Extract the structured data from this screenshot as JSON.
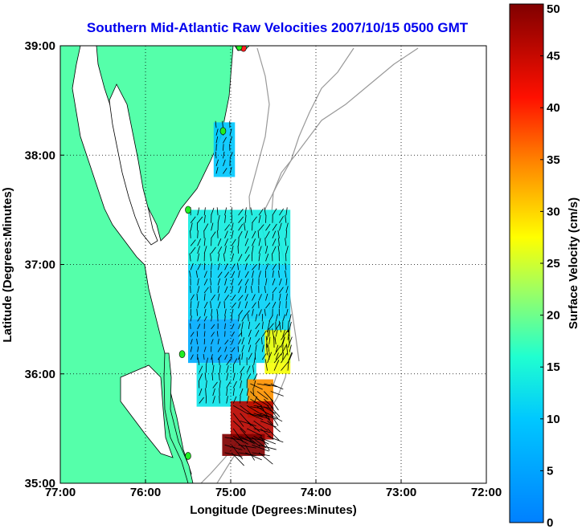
{
  "title": "Southern Mid-Atlantic Raw Velocities 2007/10/15 0500 GMT",
  "map": {
    "xlabel": "Longitude (Degrees:Minutes)",
    "ylabel": "Latitude (Degrees:Minutes)",
    "lon_range": [
      -77,
      -72
    ],
    "lat_range": [
      35,
      39
    ],
    "x_ticks": [
      {
        "value": -77,
        "label": "77:00"
      },
      {
        "value": -76,
        "label": "76:00"
      },
      {
        "value": -75,
        "label": "75:00"
      },
      {
        "value": -74,
        "label": "74:00"
      },
      {
        "value": -73,
        "label": "73:00"
      },
      {
        "value": -72,
        "label": "72:00"
      }
    ],
    "y_ticks": [
      {
        "value": 39,
        "label": "39:00"
      },
      {
        "value": 38,
        "label": "38:00"
      },
      {
        "value": 37,
        "label": "37:00"
      },
      {
        "value": 36,
        "label": "36:00"
      },
      {
        "value": 35,
        "label": "35:00"
      }
    ],
    "grid": "dotted",
    "land_color": "#55ffaa",
    "bathymetry_color": "#999999",
    "stations": [
      {
        "lon": -74.85,
        "lat": 38.98,
        "color": "#ff2020"
      },
      {
        "lon": -74.9,
        "lat": 38.99,
        "color": "#22ee22"
      },
      {
        "lon": -75.09,
        "lat": 38.22,
        "color": "#22ee22"
      },
      {
        "lon": -75.5,
        "lat": 37.5,
        "color": "#22ee22"
      },
      {
        "lon": -75.57,
        "lat": 36.18,
        "color": "#22ee22"
      },
      {
        "lon": -75.5,
        "lat": 35.25,
        "color": "#22ee22"
      }
    ]
  },
  "colorbar": {
    "label": "Surface Velocity (cm/s)",
    "range": [
      0,
      50
    ],
    "ticks": [
      {
        "value": 0,
        "label": "0"
      },
      {
        "value": 5,
        "label": "5"
      },
      {
        "value": 10,
        "label": "10"
      },
      {
        "value": 15,
        "label": "15"
      },
      {
        "value": 20,
        "label": "20"
      },
      {
        "value": 25,
        "label": "25"
      },
      {
        "value": 30,
        "label": "30"
      },
      {
        "value": 35,
        "label": "35"
      },
      {
        "value": 40,
        "label": "40"
      },
      {
        "value": 45,
        "label": "45"
      },
      {
        "value": 50,
        "label": "50"
      }
    ]
  },
  "velocity_regions": [
    {
      "lon_min": -75.2,
      "lon_max": -74.95,
      "lat_min": 37.8,
      "lat_max": 38.3,
      "speed": 10
    },
    {
      "lon_min": -75.5,
      "lon_max": -74.3,
      "lat_min": 37.0,
      "lat_max": 37.5,
      "speed": 14
    },
    {
      "lon_min": -75.5,
      "lon_max": -74.3,
      "lat_min": 36.5,
      "lat_max": 37.0,
      "speed": 11
    },
    {
      "lon_min": -75.5,
      "lon_max": -74.9,
      "lat_min": 36.1,
      "lat_max": 36.5,
      "speed": 6
    },
    {
      "lon_min": -74.9,
      "lon_max": -74.3,
      "lat_min": 36.1,
      "lat_max": 36.5,
      "speed": 12
    },
    {
      "lon_min": -74.6,
      "lon_max": -74.3,
      "lat_min": 36.0,
      "lat_max": 36.4,
      "speed": 27
    },
    {
      "lon_min": -75.4,
      "lon_max": -74.7,
      "lat_min": 35.7,
      "lat_max": 36.1,
      "speed": 13
    },
    {
      "lon_min": -74.8,
      "lon_max": -74.5,
      "lat_min": 35.6,
      "lat_max": 35.95,
      "speed": 34
    },
    {
      "lon_min": -75.0,
      "lon_max": -74.5,
      "lat_min": 35.4,
      "lat_max": 35.75,
      "speed": 46
    },
    {
      "lon_min": -75.1,
      "lon_max": -74.6,
      "lat_min": 35.25,
      "lat_max": 35.45,
      "speed": 50
    }
  ]
}
